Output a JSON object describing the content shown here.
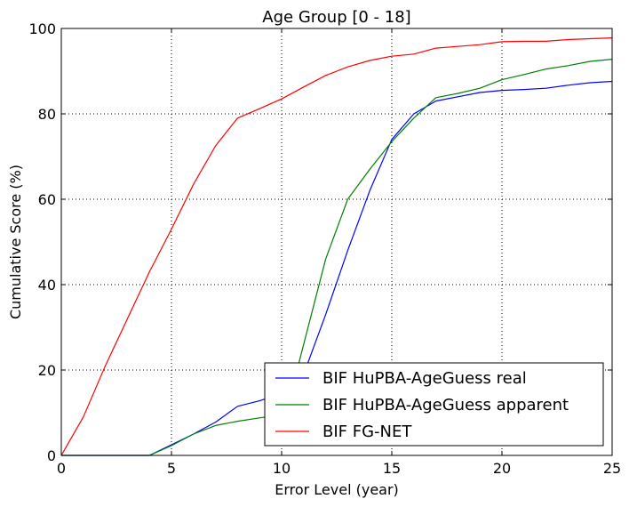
{
  "chart_data": {
    "type": "line",
    "title": "Age Group [0 - 18]",
    "xlabel": "Error Level (year)",
    "ylabel": "Cumulative Score (%)",
    "xlim": [
      0,
      25
    ],
    "ylim": [
      0,
      100
    ],
    "xticks": [
      0,
      5,
      10,
      15,
      20,
      25
    ],
    "yticks": [
      0,
      20,
      40,
      60,
      80,
      100
    ],
    "grid": true,
    "legend_position": "bottom-right",
    "series": [
      {
        "name": "BIF HuPBA-AgeGuess real",
        "color": "#0000ff",
        "x": [
          0,
          1,
          2,
          3,
          4,
          5,
          6,
          7,
          8,
          9,
          10,
          11,
          12,
          13,
          14,
          15,
          16,
          17,
          18,
          19,
          20,
          21,
          22,
          23,
          24,
          25
        ],
        "y": [
          0,
          0,
          0,
          0,
          0,
          2.5,
          5,
          7.8,
          11.5,
          12.8,
          14.5,
          19,
          33,
          48,
          62,
          74,
          80,
          83,
          84,
          85,
          85.5,
          85.7,
          86,
          86.7,
          87.3,
          87.6
        ]
      },
      {
        "name": "BIF HuPBA-AgeGuess apparent",
        "color": "#008000",
        "x": [
          0,
          1,
          2,
          3,
          4,
          5,
          6,
          7,
          8,
          9,
          10,
          10.5,
          11,
          12,
          13,
          14,
          15,
          16,
          17,
          18,
          19,
          20,
          21,
          22,
          23,
          24,
          25
        ],
        "y": [
          0,
          0,
          0,
          0,
          0,
          2.3,
          5,
          7,
          8,
          8.8,
          9.5,
          16,
          26,
          46,
          60,
          67,
          73.5,
          79,
          83.8,
          84.8,
          86,
          88,
          89.2,
          90.5,
          91.3,
          92.3,
          92.8
        ]
      },
      {
        "name": "BIF FG-NET",
        "color": "#ff0000",
        "x": [
          0,
          1,
          2,
          3,
          4,
          5,
          6,
          7,
          8,
          9,
          10,
          11,
          12,
          13,
          14,
          15,
          16,
          17,
          18,
          19,
          20,
          21,
          22,
          23,
          24,
          25
        ],
        "y": [
          0,
          9,
          21,
          32,
          43,
          53,
          63.5,
          72.5,
          79,
          81.2,
          83.5,
          86.3,
          89,
          91,
          92.5,
          93.5,
          94,
          95.4,
          95.8,
          96.2,
          96.9,
          97,
          97,
          97.4,
          97.6,
          97.8
        ]
      }
    ]
  }
}
